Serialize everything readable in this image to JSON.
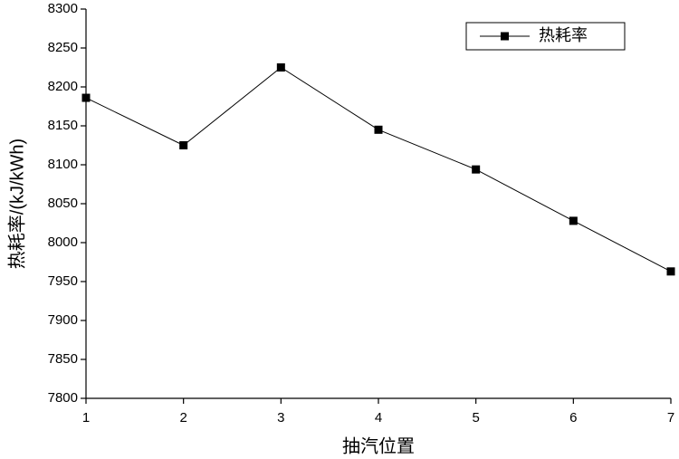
{
  "chart_data": {
    "type": "line",
    "xlabel": "抽汽位置",
    "ylabel": "热耗率/(kJ/kWh)",
    "x": [
      1,
      2,
      3,
      4,
      5,
      6,
      7
    ],
    "series": [
      {
        "name": "热耗率",
        "color": "#000000",
        "values": [
          8186,
          8125,
          8225,
          8145,
          8094,
          8028,
          7963
        ]
      }
    ],
    "xlim": [
      1,
      7
    ],
    "xticks": [
      1,
      2,
      3,
      4,
      5,
      6,
      7
    ],
    "ylim": [
      7800,
      8300
    ],
    "yticks": [
      7800,
      7850,
      7900,
      7950,
      8000,
      8050,
      8100,
      8150,
      8200,
      8250,
      8300
    ],
    "legend": "upper right"
  }
}
